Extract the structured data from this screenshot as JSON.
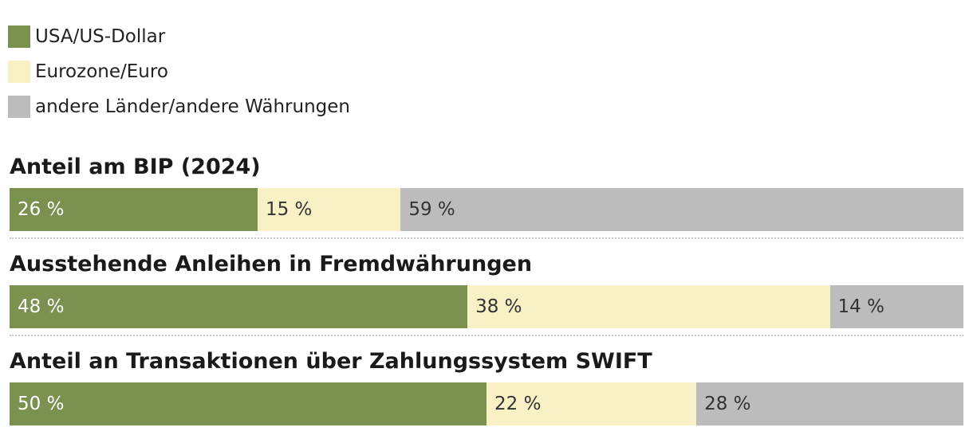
{
  "legend": [
    {
      "label": "USA/US-Dollar",
      "color": "#7b9150"
    },
    {
      "label": "Eurozone/Euro",
      "color": "#f8f1c6"
    },
    {
      "label": "andere Länder/andere Währungen",
      "color": "#bcbcbc"
    }
  ],
  "chart_data": {
    "type": "bar",
    "orientation": "horizontal-stacked-100",
    "legend_position": "top-left",
    "grid": false,
    "categories": [
      "Anteil am BIP (2024)",
      "Ausstehende Anleihen in Fremdwährungen",
      "Anteil an Transaktionen über Zahlungssystem SWIFT"
    ],
    "series": [
      {
        "name": "USA/US-Dollar",
        "color": "#7b9150",
        "values": [
          26,
          48,
          50
        ],
        "labels": [
          "26 %",
          "48 %",
          "50 %"
        ]
      },
      {
        "name": "Eurozone/Euro",
        "color": "#f8f1c6",
        "values": [
          15,
          38,
          22
        ],
        "labels": [
          "15 %",
          "38 %",
          "22 %"
        ]
      },
      {
        "name": "andere Länder/andere Währungen",
        "color": "#bcbcbc",
        "values": [
          59,
          14,
          28
        ],
        "labels": [
          "59 %",
          "14 %",
          "28 %"
        ]
      }
    ]
  }
}
